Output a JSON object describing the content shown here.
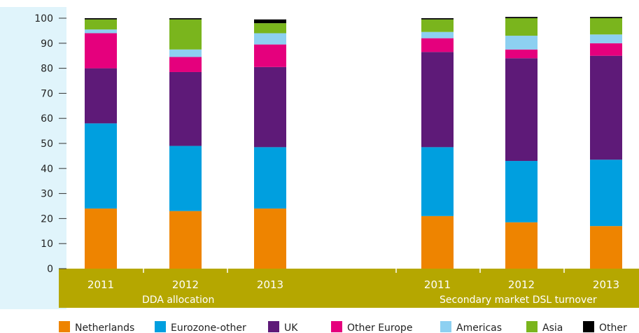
{
  "chart_data": {
    "type": "bar",
    "stacked": true,
    "title": "",
    "xlabel": "",
    "ylabel": "",
    "ylim": [
      0,
      100
    ],
    "yticks": [
      0,
      10,
      20,
      30,
      40,
      50,
      60,
      70,
      80,
      90,
      100
    ],
    "groups": [
      {
        "label": "DDA allocation",
        "categories": [
          "2011",
          "2012",
          "2013"
        ]
      },
      {
        "label": "Secondary market DSL turnover",
        "categories": [
          "2011",
          "2012",
          "2013"
        ]
      }
    ],
    "categories": [
      "2011",
      "2012",
      "2013",
      "2011",
      "2012",
      "2013"
    ],
    "series": [
      {
        "name": "Netherlands",
        "color": "#EE8400",
        "values": [
          24,
          23,
          24,
          21,
          18.5,
          17
        ]
      },
      {
        "name": "Eurozone-other",
        "color": "#009FDF",
        "values": [
          34,
          26,
          24.5,
          27.5,
          24.5,
          26.5
        ]
      },
      {
        "name": "UK",
        "color": "#5E1A78",
        "values": [
          22,
          29.5,
          32,
          38,
          41,
          41.5
        ]
      },
      {
        "name": "Other Europe",
        "color": "#E5007D",
        "values": [
          14,
          6,
          9,
          5.5,
          3.5,
          5
        ]
      },
      {
        "name": "Americas",
        "color": "#8DD0F1",
        "values": [
          1.5,
          3,
          4.5,
          2.5,
          5.5,
          3.5
        ]
      },
      {
        "name": "Asia",
        "color": "#7AB51D",
        "values": [
          4,
          12,
          4,
          5,
          7,
          6.5
        ]
      },
      {
        "name": "Other",
        "color": "#000000",
        "values": [
          0.5,
          0.5,
          1.5,
          0.5,
          0.5,
          0.5
        ]
      }
    ],
    "legend_position": "bottom",
    "grid": false
  },
  "colors": {
    "axis_band": "#B5A700",
    "y_band": "#E0F4FB"
  }
}
